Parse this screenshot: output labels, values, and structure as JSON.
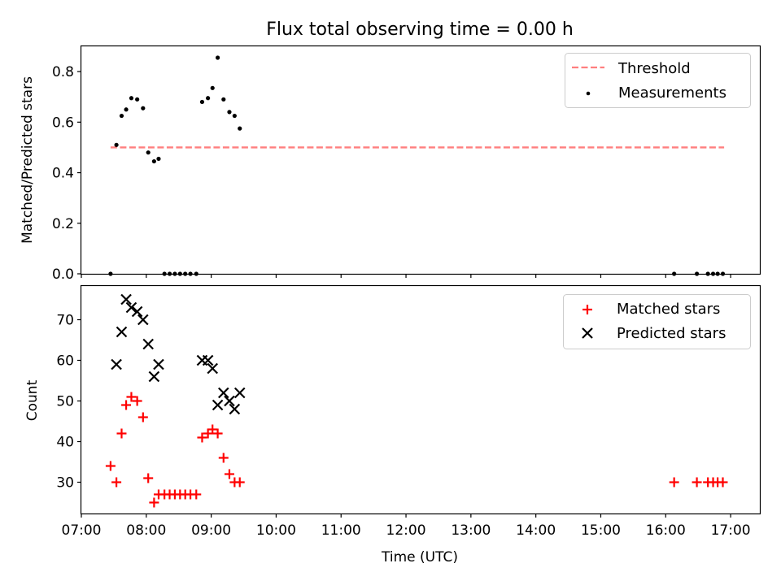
{
  "chart_data": {
    "title": "Flux total observing time = 0.00 h",
    "xlabel": "Time (UTC)",
    "xlim": [
      7.0,
      17.45
    ],
    "xticks": [
      {
        "v": 7,
        "label": "07:00"
      },
      {
        "v": 8,
        "label": "08:00"
      },
      {
        "v": 9,
        "label": "09:00"
      },
      {
        "v": 10,
        "label": "10:00"
      },
      {
        "v": 11,
        "label": "11:00"
      },
      {
        "v": 12,
        "label": "12:00"
      },
      {
        "v": 13,
        "label": "13:00"
      },
      {
        "v": 14,
        "label": "14:00"
      },
      {
        "v": 15,
        "label": "15:00"
      },
      {
        "v": 16,
        "label": "16:00"
      },
      {
        "v": 17,
        "label": "17:00"
      }
    ],
    "colors": {
      "threshold": "#ff7f7f",
      "measurements": "#000000",
      "matched": "#ff0000",
      "predicted": "#000000"
    },
    "panels": [
      {
        "type": "scatter",
        "ylabel": "Matched/Predicted stars",
        "ylim": [
          0,
          0.9
        ],
        "yticks": [
          "0.0",
          "0.2",
          "0.4",
          "0.6",
          "0.8"
        ],
        "legend": [
          "Threshold",
          "Measurements"
        ],
        "threshold": {
          "name": "Threshold",
          "value": 0.5,
          "x": [
            7.45,
            16.9
          ]
        },
        "series": [
          {
            "name": "Measurements",
            "marker": "dot",
            "x": [
              7.45,
              7.54,
              7.62,
              7.69,
              7.77,
              7.86,
              7.95,
              8.03,
              8.12,
              8.19,
              8.28,
              8.36,
              8.44,
              8.52,
              8.6,
              8.68,
              8.77,
              8.86,
              8.95,
              9.02,
              9.1,
              9.19,
              9.28,
              9.36,
              9.44,
              16.13,
              16.48,
              16.65,
              16.73,
              16.8,
              16.88
            ],
            "y": [
              0.0,
              0.51,
              0.625,
              0.65,
              0.695,
              0.69,
              0.655,
              0.48,
              0.445,
              0.455,
              0.0,
              0.0,
              0.0,
              0.0,
              0.0,
              0.0,
              0.0,
              0.68,
              0.695,
              0.735,
              0.855,
              0.69,
              0.64,
              0.625,
              0.575,
              0.0,
              0.0,
              0.0,
              0.0,
              0.0,
              0.0
            ]
          }
        ]
      },
      {
        "type": "scatter",
        "ylabel": "Count",
        "ylim": [
          22.3,
          78.3
        ],
        "yticks": [
          "30",
          "40",
          "50",
          "60",
          "70"
        ],
        "legend": [
          "Matched stars",
          "Predicted stars"
        ],
        "series": [
          {
            "name": "Matched stars",
            "marker": "plus",
            "x": [
              7.45,
              7.54,
              7.62,
              7.69,
              7.77,
              7.86,
              7.95,
              8.03,
              8.12,
              8.19,
              8.28,
              8.36,
              8.44,
              8.52,
              8.6,
              8.68,
              8.77,
              8.86,
              8.95,
              9.02,
              9.1,
              9.19,
              9.28,
              9.36,
              9.44,
              16.13,
              16.48,
              16.65,
              16.73,
              16.8,
              16.88
            ],
            "y": [
              34,
              30,
              42,
              49,
              51,
              50,
              46,
              31,
              25,
              27,
              27,
              27,
              27,
              27,
              27,
              27,
              27,
              41,
              42,
              43,
              42,
              36,
              32,
              30,
              30,
              30,
              30,
              30,
              30,
              30,
              30
            ]
          },
          {
            "name": "Predicted stars",
            "marker": "x",
            "x": [
              7.54,
              7.62,
              7.69,
              7.77,
              7.86,
              7.95,
              8.03,
              8.12,
              8.19,
              8.86,
              8.95,
              9.02,
              9.1,
              9.19,
              9.28,
              9.36,
              9.44
            ],
            "y": [
              59,
              67,
              75,
              73,
              72,
              70,
              64,
              56,
              59,
              60,
              60,
              58,
              49,
              52,
              50,
              48,
              52
            ]
          }
        ]
      }
    ]
  }
}
